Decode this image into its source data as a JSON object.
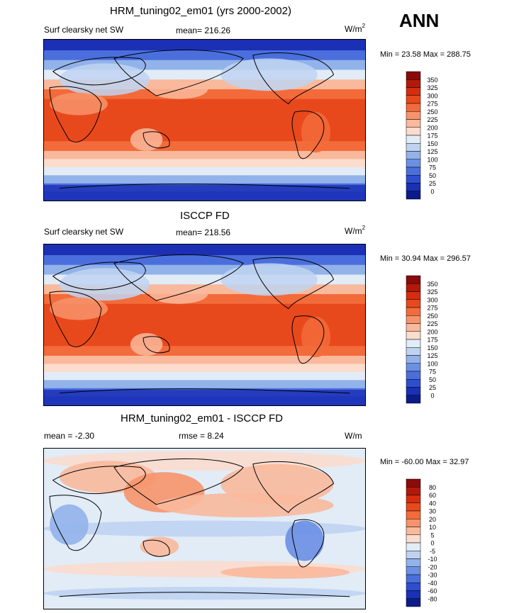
{
  "season_label": "ANN",
  "units_html": "W/m",
  "units_sup": "2",
  "chart_data": [
    {
      "type": "heatmap",
      "title": "HRM_tuning02_em01 (yrs 2000-2002)",
      "variable": "Surf clearsky net SW",
      "mean_text": "mean= 216.26",
      "minmax_text": "Min =  23.58 Max = 288.75",
      "colorbar_levels": [
        "350",
        "325",
        "300",
        "275",
        "250",
        "225",
        "200",
        "175",
        "150",
        "125",
        "100",
        "75",
        "50",
        "25",
        "0"
      ],
      "colorbar_colors": [
        "#8b0a0a",
        "#b3190b",
        "#d62d0f",
        "#e8491c",
        "#f36b3b",
        "#f7936a",
        "#f9b99c",
        "#fbdccd",
        "#e1ecf7",
        "#bfd3f1",
        "#92b2ea",
        "#6b8fe4",
        "#4a6fdd",
        "#2e4ed0",
        "#1b30b5",
        "#0c1a8a"
      ]
    },
    {
      "type": "heatmap",
      "title": "ISCCP FD",
      "variable": "Surf clearsky net SW",
      "mean_text": "mean= 218.56",
      "minmax_text": "Min =  30.94 Max = 296.57",
      "colorbar_levels": [
        "350",
        "325",
        "300",
        "275",
        "250",
        "225",
        "200",
        "175",
        "150",
        "125",
        "100",
        "75",
        "50",
        "25",
        "0"
      ],
      "colorbar_colors": [
        "#8b0a0a",
        "#b3190b",
        "#d62d0f",
        "#e8491c",
        "#f36b3b",
        "#f7936a",
        "#f9b99c",
        "#fbdccd",
        "#e1ecf7",
        "#bfd3f1",
        "#92b2ea",
        "#6b8fe4",
        "#4a6fdd",
        "#2e4ed0",
        "#1b30b5",
        "#0c1a8a"
      ]
    },
    {
      "type": "heatmap",
      "title": "HRM_tuning02_em01 - ISCCP FD",
      "mean_text": "mean =  -2.30",
      "rmse_text": "rmse =   8.24",
      "minmax_text": "Min = -60.00 Max =  32.97",
      "colorbar_levels": [
        "80",
        "60",
        "40",
        "30",
        "20",
        "10",
        "5",
        "0",
        "-5",
        "-10",
        "-20",
        "-30",
        "-40",
        "-60",
        "-80"
      ],
      "colorbar_colors": [
        "#8b0a0a",
        "#b3190b",
        "#d62d0f",
        "#e8491c",
        "#f36b3b",
        "#f7936a",
        "#f9b99c",
        "#fbdccd",
        "#e1ecf7",
        "#bfd3f1",
        "#92b2ea",
        "#6b8fe4",
        "#4a6fdd",
        "#2e4ed0",
        "#1b30b5",
        "#0c1a8a"
      ]
    }
  ]
}
